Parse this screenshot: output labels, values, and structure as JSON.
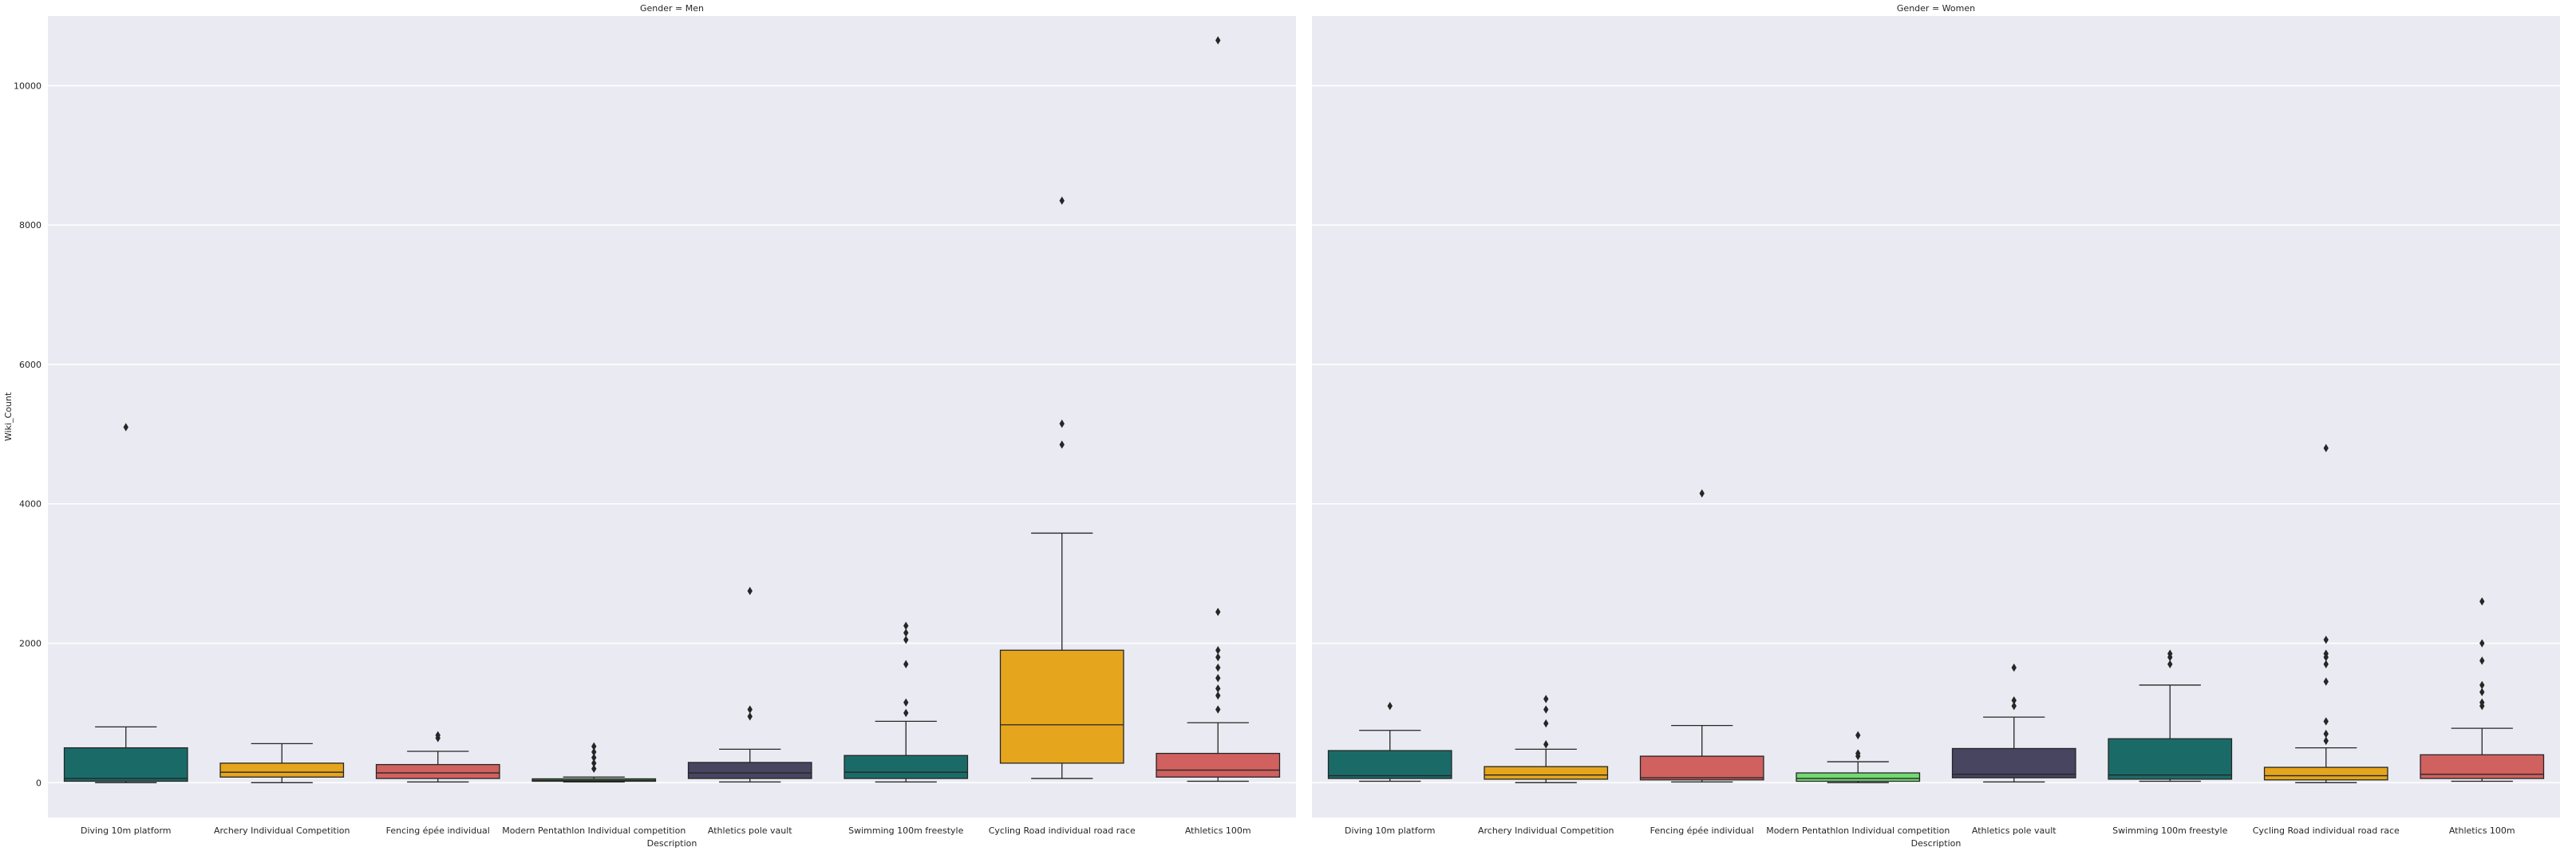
{
  "colors": {
    "background": "#eaeaf2",
    "grid": "#ffffff",
    "box_edge": "#262626",
    "palette": [
      "#1a6b68",
      "#e5a51c",
      "#d0615f",
      "#72d872",
      "#474560"
    ]
  },
  "chart_data": {
    "type": "box",
    "ylabel": "Wiki_Count",
    "ylim": [
      -500,
      11000
    ],
    "yticks": [
      0,
      2000,
      4000,
      6000,
      8000,
      10000
    ],
    "grid": true,
    "sharey": true,
    "panels": [
      {
        "title": "Gender = Men",
        "xlabel": "Description",
        "boxes": [
          {
            "category": "Diving 10m platform",
            "color": "#1a6b68",
            "whislo": 0,
            "q1": 20,
            "med": 60,
            "q3": 500,
            "whishi": 800,
            "fliers": [
              5100
            ]
          },
          {
            "category": "Archery Individual Competition",
            "color": "#e5a51c",
            "whislo": 0,
            "q1": 80,
            "med": 150,
            "q3": 280,
            "whishi": 560,
            "fliers": []
          },
          {
            "category": "Fencing épée individual",
            "color": "#d0615f",
            "whislo": 10,
            "q1": 60,
            "med": 140,
            "q3": 260,
            "whishi": 450,
            "fliers": [
              640,
              680
            ]
          },
          {
            "category": "Modern Pentathlon Individual competition",
            "color": "#4ca44c",
            "whislo": 10,
            "q1": 20,
            "med": 35,
            "q3": 55,
            "whishi": 80,
            "fliers": [
              200,
              280,
              360,
              440,
              520
            ]
          },
          {
            "category": "Athletics pole vault",
            "color": "#474560",
            "whislo": 10,
            "q1": 60,
            "med": 140,
            "q3": 290,
            "whishi": 480,
            "fliers": [
              950,
              1050,
              2750
            ]
          },
          {
            "category": "Swimming 100m freestyle",
            "color": "#1a6b68",
            "whislo": 10,
            "q1": 60,
            "med": 150,
            "q3": 390,
            "whishi": 880,
            "fliers": [
              1000,
              1150,
              1700,
              2050,
              2150,
              2250
            ]
          },
          {
            "category": "Cycling Road individual road race",
            "color": "#e5a51c",
            "whislo": 60,
            "q1": 280,
            "med": 830,
            "q3": 1900,
            "whishi": 3580,
            "fliers": [
              4850,
              5150,
              8350
            ]
          },
          {
            "category": "Athletics 100m",
            "color": "#d0615f",
            "whislo": 20,
            "q1": 80,
            "med": 180,
            "q3": 420,
            "whishi": 860,
            "fliers": [
              1050,
              1250,
              1350,
              1500,
              1650,
              1800,
              1900,
              2450,
              10650
            ]
          }
        ]
      },
      {
        "title": "Gender = Women",
        "xlabel": "Description",
        "boxes": [
          {
            "category": "Diving 10m platform",
            "color": "#1a6b68",
            "whislo": 20,
            "q1": 60,
            "med": 100,
            "q3": 460,
            "whishi": 750,
            "fliers": [
              1100
            ]
          },
          {
            "category": "Archery Individual Competition",
            "color": "#e5a51c",
            "whislo": 0,
            "q1": 50,
            "med": 110,
            "q3": 230,
            "whishi": 480,
            "fliers": [
              550,
              850,
              1050,
              1200
            ]
          },
          {
            "category": "Fencing épée individual",
            "color": "#d0615f",
            "whislo": 10,
            "q1": 40,
            "med": 70,
            "q3": 380,
            "whishi": 820,
            "fliers": [
              4150
            ]
          },
          {
            "category": "Modern Pentathlon Individual competition",
            "color": "#72d872",
            "whislo": 0,
            "q1": 20,
            "med": 60,
            "q3": 140,
            "whishi": 300,
            "fliers": [
              380,
              420,
              680
            ]
          },
          {
            "category": "Athletics pole vault",
            "color": "#474560",
            "whislo": 10,
            "q1": 70,
            "med": 120,
            "q3": 490,
            "whishi": 940,
            "fliers": [
              1100,
              1180,
              1650
            ]
          },
          {
            "category": "Swimming 100m freestyle",
            "color": "#1a6b68",
            "whislo": 20,
            "q1": 50,
            "med": 110,
            "q3": 630,
            "whishi": 1400,
            "fliers": [
              1700,
              1800,
              1850
            ]
          },
          {
            "category": "Cycling Road individual road race",
            "color": "#e5a51c",
            "whislo": 0,
            "q1": 40,
            "med": 100,
            "q3": 220,
            "whishi": 500,
            "fliers": [
              600,
              700,
              880,
              1450,
              1700,
              1800,
              1850,
              2050,
              4800
            ]
          },
          {
            "category": "Athletics 100m",
            "color": "#d0615f",
            "whislo": 20,
            "q1": 60,
            "med": 120,
            "q3": 400,
            "whishi": 780,
            "fliers": [
              1100,
              1150,
              1300,
              1400,
              1750,
              2000,
              2600
            ]
          }
        ]
      }
    ]
  }
}
